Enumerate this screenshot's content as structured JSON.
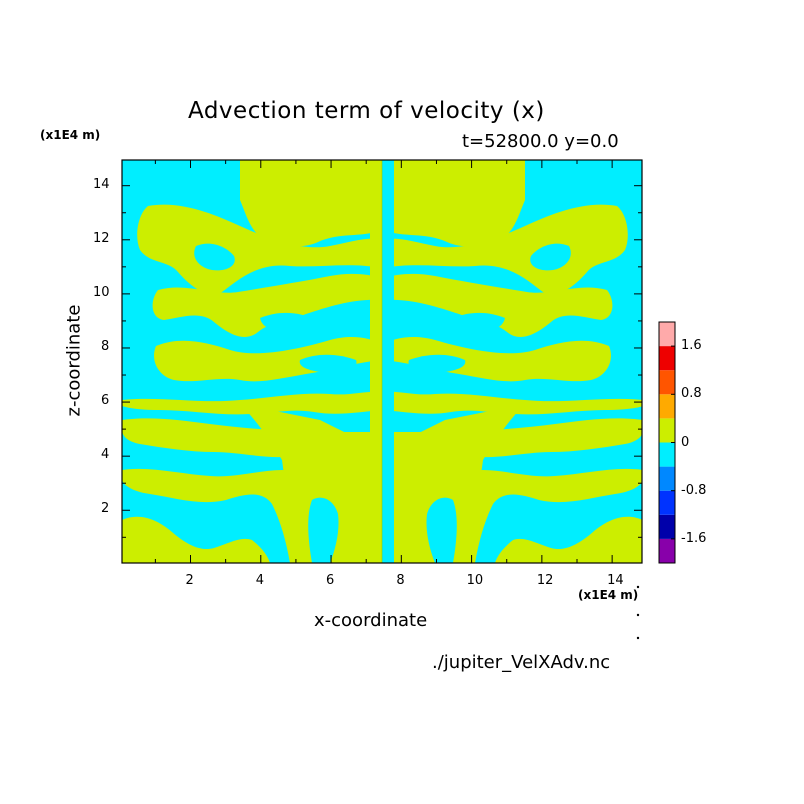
{
  "chart_data": {
    "type": "heatmap",
    "title": "Advection term of velocity (x)",
    "subtitle": "t=52800.0 y=0.0",
    "xlabel": "x-coordinate",
    "ylabel": "z-coordinate",
    "x_unit": "(x1E4 m)",
    "y_unit": "(x1E4 m)",
    "source": "./jupiter_VelXAdv.nc",
    "xlim": [
      0.05,
      14.85
    ],
    "ylim": [
      0.05,
      14.95
    ],
    "x_ticks": [
      2,
      4,
      6,
      8,
      10,
      12,
      14
    ],
    "y_ticks": [
      2,
      4,
      6,
      8,
      10,
      12,
      14
    ],
    "colorbar": {
      "levels": [
        {
          "lo": -2.0,
          "hi": -1.6,
          "color": "#8800aa"
        },
        {
          "lo": -1.6,
          "hi": -1.2,
          "color": "#0000aa"
        },
        {
          "lo": -1.2,
          "hi": -0.8,
          "color": "#0033ff"
        },
        {
          "lo": -0.8,
          "hi": -0.4,
          "color": "#0088ff"
        },
        {
          "lo": -0.4,
          "hi": 0.0,
          "color": "#00eeff"
        },
        {
          "lo": 0.0,
          "hi": 0.4,
          "color": "#ccee00"
        },
        {
          "lo": 0.4,
          "hi": 0.8,
          "color": "#ffaa00"
        },
        {
          "lo": 0.8,
          "hi": 1.2,
          "color": "#ff5500"
        },
        {
          "lo": 1.2,
          "hi": 1.6,
          "color": "#ee0000"
        },
        {
          "lo": 1.6,
          "hi": 2.0,
          "color": "#ffaaaa"
        }
      ],
      "tick_labels": [
        "1.6",
        "0.8",
        "0",
        "-0.8",
        "-1.6"
      ],
      "tick_values": [
        1.6,
        0.8,
        0,
        -0.8,
        -1.6
      ]
    },
    "field_description": "Two-level (negative cyan / positive yellow-green) banded field, mirror symmetric about x=7.5"
  }
}
